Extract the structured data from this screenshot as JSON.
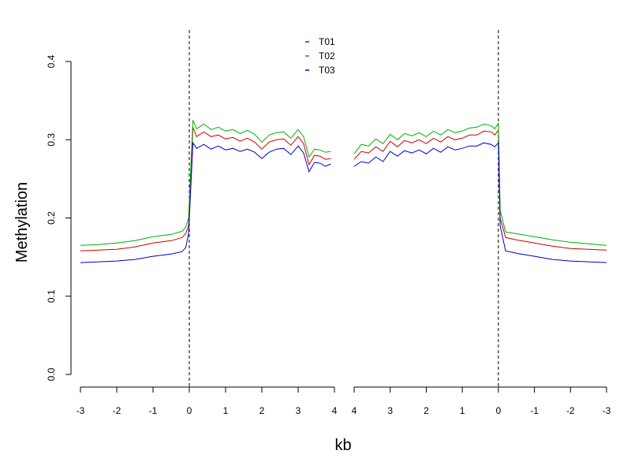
{
  "chart_data": {
    "type": "line",
    "xlabel": "kb",
    "ylabel": "Methylation",
    "ylim": [
      0,
      0.4
    ],
    "yticks": [
      "0.0",
      "0.1",
      "0.2",
      "0.3",
      "0.4"
    ],
    "legend_position": "top-center",
    "grid": false,
    "panels": [
      {
        "name": "left",
        "xlim": [
          -3,
          4
        ],
        "xticks": [
          "-3",
          "-2",
          "-1",
          "0",
          "1",
          "2",
          "3",
          "4"
        ],
        "boundary_line_at": 0
      },
      {
        "name": "right",
        "xlim": [
          4,
          -3
        ],
        "xticks": [
          "4",
          "3",
          "2",
          "1",
          "0",
          "-1",
          "-2",
          "-3"
        ],
        "boundary_line_at": 0
      }
    ],
    "series": [
      {
        "name": "T01",
        "color": "#cc0000",
        "left": {
          "x": [
            -3.0,
            -2.5,
            -2.0,
            -1.5,
            -1.0,
            -0.5,
            -0.2,
            -0.1,
            -0.02,
            0.1,
            0.2,
            0.4,
            0.6,
            0.8,
            1.0,
            1.2,
            1.4,
            1.6,
            1.8,
            2.0,
            2.2,
            2.4,
            2.6,
            2.8,
            3.0,
            3.15,
            3.3,
            3.45,
            3.6,
            3.75,
            3.9
          ],
          "y": [
            0.158,
            0.159,
            0.16,
            0.163,
            0.168,
            0.171,
            0.175,
            0.18,
            0.19,
            0.316,
            0.304,
            0.31,
            0.304,
            0.306,
            0.301,
            0.303,
            0.298,
            0.302,
            0.297,
            0.288,
            0.297,
            0.3,
            0.301,
            0.293,
            0.304,
            0.295,
            0.268,
            0.28,
            0.279,
            0.275,
            0.276
          ]
        },
        "right": {
          "x": [
            4.0,
            3.8,
            3.6,
            3.4,
            3.2,
            3.0,
            2.8,
            2.6,
            2.4,
            2.2,
            2.0,
            1.8,
            1.6,
            1.4,
            1.2,
            1.0,
            0.8,
            0.6,
            0.4,
            0.2,
            0.1,
            0.0,
            -0.05,
            -0.2,
            -0.5,
            -1.0,
            -1.5,
            -2.0,
            -2.5,
            -3.0
          ],
          "y": [
            0.275,
            0.285,
            0.283,
            0.291,
            0.285,
            0.298,
            0.291,
            0.299,
            0.296,
            0.3,
            0.295,
            0.302,
            0.297,
            0.304,
            0.3,
            0.302,
            0.306,
            0.306,
            0.311,
            0.31,
            0.306,
            0.312,
            0.2,
            0.175,
            0.172,
            0.168,
            0.164,
            0.161,
            0.16,
            0.159
          ]
        }
      },
      {
        "name": "T02",
        "color": "#00b000",
        "left": {
          "x": [
            -3.0,
            -2.5,
            -2.0,
            -1.5,
            -1.0,
            -0.5,
            -0.2,
            -0.1,
            -0.02,
            0.1,
            0.2,
            0.4,
            0.6,
            0.8,
            1.0,
            1.2,
            1.4,
            1.6,
            1.8,
            2.0,
            2.2,
            2.4,
            2.6,
            2.8,
            3.0,
            3.15,
            3.3,
            3.45,
            3.6,
            3.75,
            3.9
          ],
          "y": [
            0.165,
            0.166,
            0.168,
            0.171,
            0.176,
            0.179,
            0.183,
            0.188,
            0.2,
            0.325,
            0.314,
            0.32,
            0.313,
            0.316,
            0.311,
            0.313,
            0.308,
            0.312,
            0.307,
            0.297,
            0.306,
            0.309,
            0.31,
            0.302,
            0.313,
            0.304,
            0.278,
            0.288,
            0.287,
            0.284,
            0.285
          ]
        },
        "right": {
          "x": [
            4.0,
            3.8,
            3.6,
            3.4,
            3.2,
            3.0,
            2.8,
            2.6,
            2.4,
            2.2,
            2.0,
            1.8,
            1.6,
            1.4,
            1.2,
            1.0,
            0.8,
            0.6,
            0.4,
            0.2,
            0.1,
            0.0,
            -0.05,
            -0.2,
            -0.5,
            -1.0,
            -1.5,
            -2.0,
            -2.5,
            -3.0
          ],
          "y": [
            0.282,
            0.294,
            0.292,
            0.301,
            0.295,
            0.307,
            0.3,
            0.308,
            0.305,
            0.309,
            0.304,
            0.311,
            0.306,
            0.313,
            0.309,
            0.311,
            0.315,
            0.316,
            0.32,
            0.318,
            0.314,
            0.321,
            0.21,
            0.182,
            0.18,
            0.176,
            0.172,
            0.169,
            0.167,
            0.165
          ]
        }
      },
      {
        "name": "T03",
        "color": "#0000cc",
        "left": {
          "x": [
            -3.0,
            -2.5,
            -2.0,
            -1.5,
            -1.0,
            -0.5,
            -0.2,
            -0.1,
            -0.02,
            0.1,
            0.2,
            0.4,
            0.6,
            0.8,
            1.0,
            1.2,
            1.4,
            1.6,
            1.8,
            2.0,
            2.2,
            2.4,
            2.6,
            2.8,
            3.0,
            3.15,
            3.3,
            3.45,
            3.6,
            3.75,
            3.9
          ],
          "y": [
            0.143,
            0.144,
            0.145,
            0.147,
            0.151,
            0.154,
            0.157,
            0.162,
            0.18,
            0.296,
            0.289,
            0.294,
            0.288,
            0.292,
            0.287,
            0.289,
            0.285,
            0.288,
            0.284,
            0.276,
            0.284,
            0.288,
            0.289,
            0.281,
            0.292,
            0.283,
            0.259,
            0.271,
            0.27,
            0.266,
            0.269
          ]
        },
        "right": {
          "x": [
            4.0,
            3.8,
            3.6,
            3.4,
            3.2,
            3.0,
            2.8,
            2.6,
            2.4,
            2.2,
            2.0,
            1.8,
            1.6,
            1.4,
            1.2,
            1.0,
            0.8,
            0.6,
            0.4,
            0.2,
            0.1,
            0.0,
            -0.05,
            -0.2,
            -0.5,
            -1.0,
            -1.5,
            -2.0,
            -2.5,
            -3.0
          ],
          "y": [
            0.266,
            0.272,
            0.27,
            0.278,
            0.272,
            0.285,
            0.279,
            0.286,
            0.283,
            0.287,
            0.282,
            0.289,
            0.284,
            0.291,
            0.287,
            0.289,
            0.292,
            0.292,
            0.296,
            0.294,
            0.291,
            0.296,
            0.19,
            0.158,
            0.155,
            0.151,
            0.147,
            0.145,
            0.144,
            0.143
          ]
        }
      }
    ]
  }
}
